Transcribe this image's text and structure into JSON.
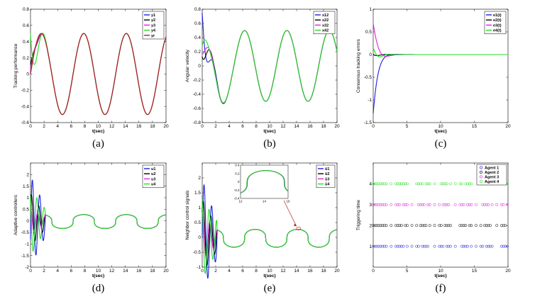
{
  "chart_data": [
    {
      "type": "line",
      "caption": "(a)",
      "xlabel": "t(sec)",
      "ylabel": "Tracking performance",
      "xlim": [
        0,
        20
      ],
      "ylim": [
        -0.6,
        0.8
      ],
      "xticks": [
        "0",
        "2",
        "4",
        "6",
        "8",
        "10",
        "12",
        "14",
        "16",
        "18",
        "20"
      ],
      "yticks": [
        "-0.6",
        "-0.4",
        "-0.2",
        "0",
        "0.2",
        "0.4",
        "0.6",
        "0.8"
      ],
      "legend": [
        "y1",
        "y2",
        "y3",
        "y4",
        "yr"
      ],
      "legend_subscripts": [
        "1",
        "2",
        "3",
        "4",
        "r"
      ],
      "legend_placement": "top-right",
      "colors": {
        "y1": "#1f1fe0",
        "y2": "#000000",
        "y3": "#e020e0",
        "y4": "#1fe01f",
        "yr": "#b22222"
      },
      "reference": "0.5*sin(t)"
    },
    {
      "type": "line",
      "caption": "(b)",
      "xlabel": "t(sec)",
      "ylabel": "Angular velocity",
      "xlim": [
        0,
        20
      ],
      "ylim": [
        -0.8,
        0.8
      ],
      "xticks": [
        "0",
        "2",
        "4",
        "6",
        "8",
        "10",
        "12",
        "14",
        "16",
        "18",
        "20"
      ],
      "yticks": [
        "-0.8",
        "-0.6",
        "-0.4",
        "-0.2",
        "0",
        "0.2",
        "0.4",
        "0.6",
        "0.8"
      ],
      "legend": [
        "x12",
        "x22",
        "x32",
        "x42"
      ],
      "legend_subscripts": [
        "12",
        "22",
        "32",
        "42"
      ],
      "legend_placement": "top-right",
      "colors": {
        "x12": "#1f1fe0",
        "x22": "#000000",
        "x32": "#e020e0",
        "x42": "#1fe01f"
      }
    },
    {
      "type": "line",
      "caption": "(c)",
      "xlabel": "t(sec)",
      "ylabel": "Consensus tracking errors",
      "xlim": [
        0,
        20
      ],
      "ylim": [
        -1.5,
        1
      ],
      "xticks": [
        "0",
        "5",
        "10",
        "15",
        "20"
      ],
      "yticks": [
        "-1.5",
        "-1",
        "-0.5",
        "0",
        "0.5",
        "1"
      ],
      "legend": [
        "e1(t)",
        "e2(t)",
        "e3(t)",
        "e4(t)"
      ],
      "legend_subscripts": [
        "1",
        "2",
        "3",
        "4"
      ],
      "legend_placement": "top-right",
      "colors": {
        "e1": "#1f1fe0",
        "e2": "#000000",
        "e3": "#e020e0",
        "e4": "#1fe01f"
      }
    },
    {
      "type": "line",
      "caption": "(d)",
      "xlabel": "t(sec)",
      "ylabel": "Adaptive controllers",
      "xlim": [
        0,
        20
      ],
      "ylim": [
        -2,
        2.5
      ],
      "xticks": [
        "0",
        "2",
        "4",
        "6",
        "8",
        "10",
        "12",
        "14",
        "16",
        "18",
        "20"
      ],
      "yticks": [
        "-2",
        "-1.5",
        "-1",
        "-0.5",
        "0",
        "0.5",
        "1",
        "1.5",
        "2"
      ],
      "legend": [
        "u1",
        "u2",
        "u3",
        "u4"
      ],
      "legend_subscripts": [
        "1",
        "2",
        "3",
        "4"
      ],
      "legend_placement": "top-right",
      "colors": {
        "u1": "#1f1fe0",
        "u2": "#000000",
        "u3": "#e020e0",
        "u4": "#1fe01f"
      }
    },
    {
      "type": "line",
      "caption": "(e)",
      "xlabel": "t(sec)",
      "ylabel": "Neighbor control signals",
      "xlim": [
        0,
        20
      ],
      "ylim": [
        -1,
        2.5
      ],
      "xticks": [
        "0",
        "2",
        "4",
        "6",
        "8",
        "10",
        "12",
        "14",
        "16",
        "18",
        "20"
      ],
      "yticks": [
        "-1",
        "-0.5",
        "0",
        "0.5",
        "1",
        "1.5",
        "2"
      ],
      "legend": [
        "ū1",
        "ū2",
        "ū3",
        "ū4"
      ],
      "legend_subscripts": [
        "1",
        "2",
        "3",
        "4"
      ],
      "legend_placement": "top-right",
      "colors": {
        "u1": "#1f1fe0",
        "u2": "#000000",
        "u3": "#e020e0",
        "u4": "#1fe01f"
      },
      "inset": {
        "xlim": [
          12,
          16
        ],
        "ylim": [
          -0.4,
          0.4
        ],
        "xticks": [
          "12",
          "14",
          "16"
        ],
        "yticks": [
          "-0.4",
          "-0.2",
          "0",
          "0.2",
          "0.4"
        ]
      }
    },
    {
      "type": "scatter",
      "caption": "(f)",
      "xlabel": "t(sec)",
      "ylabel": "Triggering time",
      "xlim": [
        0,
        20
      ],
      "ylim": [
        0,
        5
      ],
      "xticks": [
        "0",
        "5",
        "10",
        "15",
        "20"
      ],
      "yticks": [
        "1",
        "2",
        "3",
        "4"
      ],
      "legend": [
        "Agent 1",
        "Agent 2",
        "Agent 3",
        "Agent 4"
      ],
      "legend_placement": "top-right",
      "colors": {
        "Agent 1": "#1f1fe0",
        "Agent 2": "#000000",
        "Agent 3": "#e020e0",
        "Agent 4": "#1fe01f"
      }
    }
  ]
}
